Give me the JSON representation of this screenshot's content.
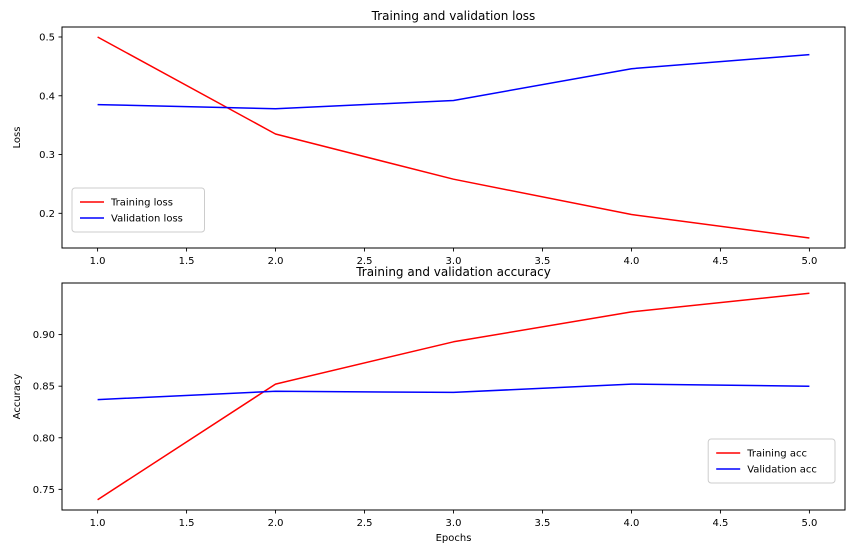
{
  "figure": {
    "background": "#ffffff",
    "text_color": "#000000",
    "spine_color": "#000000",
    "legend_edge_color": "#cccccc"
  },
  "chart_data": [
    {
      "type": "line",
      "title": "Training and validation loss",
      "xlabel": "",
      "ylabel": "Loss",
      "x": [
        1.0,
        2.0,
        3.0,
        4.0,
        5.0
      ],
      "series": [
        {
          "name": "Training loss",
          "color": "#ff0000",
          "values": [
            0.5,
            0.335,
            0.258,
            0.198,
            0.158
          ]
        },
        {
          "name": "Validation loss",
          "color": "#0000ff",
          "values": [
            0.385,
            0.378,
            0.392,
            0.446,
            0.47
          ]
        }
      ],
      "xlim": [
        0.8,
        5.2
      ],
      "ylim": [
        0.141,
        0.517
      ],
      "xticks": [
        1.0,
        1.5,
        2.0,
        2.5,
        3.0,
        3.5,
        4.0,
        4.5,
        5.0
      ],
      "xtick_labels": [
        "1.0",
        "1.5",
        "2.0",
        "2.5",
        "3.0",
        "3.5",
        "4.0",
        "4.5",
        "5.0"
      ],
      "yticks": [
        0.2,
        0.3,
        0.4,
        0.5
      ],
      "ytick_labels": [
        "0.2",
        "0.3",
        "0.4",
        "0.5"
      ],
      "legend_loc": "lower-left",
      "grid": false
    },
    {
      "type": "line",
      "title": "Training and validation accuracy",
      "xlabel": "Epochs",
      "ylabel": "Accuracy",
      "x": [
        1.0,
        2.0,
        3.0,
        4.0,
        5.0
      ],
      "series": [
        {
          "name": "Training acc",
          "color": "#ff0000",
          "values": [
            0.74,
            0.852,
            0.893,
            0.922,
            0.94
          ]
        },
        {
          "name": "Validation acc",
          "color": "#0000ff",
          "values": [
            0.837,
            0.845,
            0.844,
            0.852,
            0.85
          ]
        }
      ],
      "xlim": [
        0.8,
        5.2
      ],
      "ylim": [
        0.73,
        0.95
      ],
      "xticks": [
        1.0,
        1.5,
        2.0,
        2.5,
        3.0,
        3.5,
        4.0,
        4.5,
        5.0
      ],
      "xtick_labels": [
        "1.0",
        "1.5",
        "2.0",
        "2.5",
        "3.0",
        "3.5",
        "4.0",
        "4.5",
        "5.0"
      ],
      "yticks": [
        0.75,
        0.8,
        0.85,
        0.9
      ],
      "ytick_labels": [
        "0.75",
        "0.80",
        "0.85",
        "0.90"
      ],
      "legend_loc": "lower-right",
      "grid": false
    }
  ]
}
